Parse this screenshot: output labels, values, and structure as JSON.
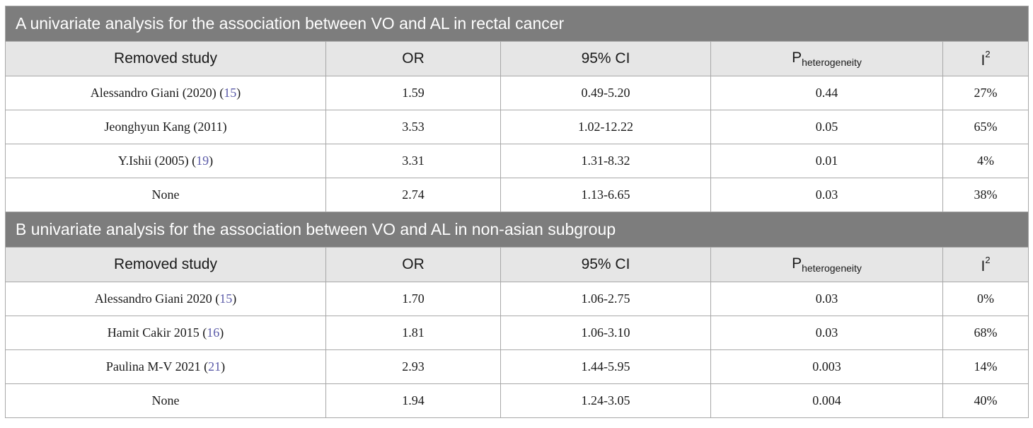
{
  "sections": [
    {
      "title": "A univariate analysis for the association between VO and AL in rectal cancer",
      "headers": {
        "study": "Removed study",
        "or": "OR",
        "ci": "95% CI",
        "p_main": "P",
        "p_sub": "heterogeneity",
        "i_main": "I",
        "i_sup": "2"
      },
      "rows": [
        {
          "study": "Alessandro Giani (2020)",
          "ref": "15",
          "or": "1.59",
          "ci": "0.49-5.20",
          "p": "0.44",
          "i2": "27%"
        },
        {
          "study": "Jeonghyun Kang (2011)",
          "ref": "",
          "or": "3.53",
          "ci": "1.02-12.22",
          "p": "0.05",
          "i2": "65%"
        },
        {
          "study": "Y.Ishii (2005)",
          "ref": "19",
          "or": "3.31",
          "ci": "1.31-8.32",
          "p": "0.01",
          "i2": "4%"
        },
        {
          "study": "None",
          "ref": "",
          "or": "2.74",
          "ci": "1.13-6.65",
          "p": "0.03",
          "i2": "38%"
        }
      ]
    },
    {
      "title": "B univariate analysis for the association between VO and AL in non-asian subgroup",
      "headers": {
        "study": "Removed study",
        "or": "OR",
        "ci": "95% CI",
        "p_main": "P",
        "p_sub": "heterogeneity",
        "i_main": "I",
        "i_sup": "2"
      },
      "rows": [
        {
          "study": "Alessandro Giani 2020",
          "ref": "15",
          "or": "1.70",
          "ci": "1.06-2.75",
          "p": "0.03",
          "i2": "0%"
        },
        {
          "study": "Hamit Cakir 2015",
          "ref": "16",
          "or": "1.81",
          "ci": "1.06-3.10",
          "p": "0.03",
          "i2": "68%"
        },
        {
          "study": "Paulina M-V 2021",
          "ref": "21",
          "or": "2.93",
          "ci": "1.44-5.95",
          "p": "0.003",
          "i2": "14%"
        },
        {
          "study": "None",
          "ref": "",
          "or": "1.94",
          "ci": "1.24-3.05",
          "p": "0.004",
          "i2": "40%"
        }
      ]
    }
  ]
}
